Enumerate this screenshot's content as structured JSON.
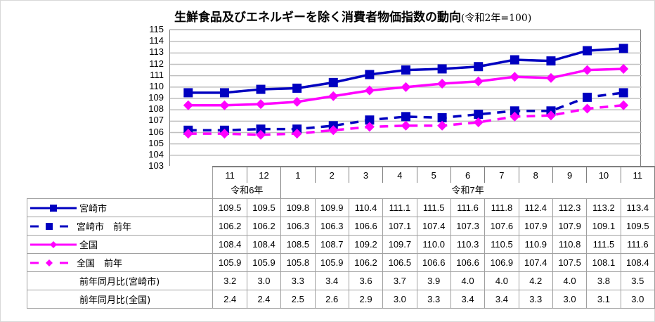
{
  "title": {
    "main": "生鮮食品及びエネルギーを除く消費者物価指数の動向",
    "sub": "(令和2年=100)"
  },
  "colors": {
    "miyazaki": "#0000c0",
    "national": "#ff00ff",
    "grid": "#c0c0c0",
    "border": "#808080"
  },
  "axis": {
    "y_ticks": [
      "115",
      "114",
      "113",
      "112",
      "111",
      "110",
      "109",
      "108",
      "107",
      "106",
      "105",
      "104",
      "103"
    ]
  },
  "table": {
    "months": [
      "11",
      "12",
      "1",
      "2",
      "3",
      "4",
      "5",
      "6",
      "7",
      "8",
      "9",
      "10",
      "11"
    ],
    "years": [
      {
        "label": "令和6年",
        "span": 2
      },
      {
        "label": "令和7年",
        "span": 11
      }
    ],
    "rows": [
      {
        "label": "宮崎市",
        "legend": "miyazaki-solid",
        "values": [
          "109.5",
          "109.5",
          "109.8",
          "109.9",
          "110.4",
          "111.1",
          "111.5",
          "111.6",
          "111.8",
          "112.4",
          "112.3",
          "113.2",
          "113.4"
        ]
      },
      {
        "label": "宮崎市　前年",
        "legend": "miyazaki-dashed",
        "values": [
          "106.2",
          "106.2",
          "106.3",
          "106.3",
          "106.6",
          "107.1",
          "107.4",
          "107.3",
          "107.6",
          "107.9",
          "107.9",
          "109.1",
          "109.5"
        ]
      },
      {
        "label": "全国",
        "legend": "national-solid",
        "values": [
          "108.4",
          "108.4",
          "108.5",
          "108.7",
          "109.2",
          "109.7",
          "110.0",
          "110.3",
          "110.5",
          "110.9",
          "110.8",
          "111.5",
          "111.6"
        ]
      },
      {
        "label": "全国　前年",
        "legend": "national-dashed",
        "values": [
          "105.9",
          "105.9",
          "105.8",
          "105.9",
          "106.2",
          "106.5",
          "106.6",
          "106.6",
          "106.9",
          "107.4",
          "107.5",
          "108.1",
          "108.4"
        ]
      },
      {
        "label": "前年同月比(宮崎市)",
        "legend": "none",
        "values": [
          "3.2",
          "3.0",
          "3.3",
          "3.4",
          "3.6",
          "3.7",
          "3.9",
          "4.0",
          "4.0",
          "4.2",
          "4.0",
          "3.8",
          "3.5"
        ]
      },
      {
        "label": "前年同月比(全国)",
        "legend": "none",
        "values": [
          "2.4",
          "2.4",
          "2.5",
          "2.6",
          "2.9",
          "3.0",
          "3.3",
          "3.4",
          "3.4",
          "3.3",
          "3.0",
          "3.1",
          "3.0"
        ]
      }
    ]
  },
  "chart_data": {
    "type": "line",
    "title": "生鮮食品及びエネルギーを除く消費者物価指数の動向(令和2年=100)",
    "xlabel": "",
    "ylabel": "",
    "ylim": [
      103,
      115
    ],
    "grid": true,
    "legend_position": "table-left",
    "categories": [
      "令和6年11",
      "12",
      "令和7年1",
      "2",
      "3",
      "4",
      "5",
      "6",
      "7",
      "8",
      "9",
      "10",
      "11"
    ],
    "series": [
      {
        "name": "宮崎市",
        "style": "solid",
        "marker": "square",
        "color": "#0000c0",
        "values": [
          109.5,
          109.5,
          109.8,
          109.9,
          110.4,
          111.1,
          111.5,
          111.6,
          111.8,
          112.4,
          112.3,
          113.2,
          113.4
        ]
      },
      {
        "name": "宮崎市　前年",
        "style": "dashed",
        "marker": "square",
        "color": "#0000c0",
        "values": [
          106.2,
          106.2,
          106.3,
          106.3,
          106.6,
          107.1,
          107.4,
          107.3,
          107.6,
          107.9,
          107.9,
          109.1,
          109.5
        ]
      },
      {
        "name": "全国",
        "style": "solid",
        "marker": "diamond",
        "color": "#ff00ff",
        "values": [
          108.4,
          108.4,
          108.5,
          108.7,
          109.2,
          109.7,
          110.0,
          110.3,
          110.5,
          110.9,
          110.8,
          111.5,
          111.6
        ]
      },
      {
        "name": "全国　前年",
        "style": "dashed",
        "marker": "diamond",
        "color": "#ff00ff",
        "values": [
          105.9,
          105.9,
          105.8,
          105.9,
          106.2,
          106.5,
          106.6,
          106.6,
          106.9,
          107.4,
          107.5,
          108.1,
          108.4
        ]
      }
    ],
    "extra_rows": [
      {
        "name": "前年同月比(宮崎市)",
        "values": [
          3.2,
          3.0,
          3.3,
          3.4,
          3.6,
          3.7,
          3.9,
          4.0,
          4.0,
          4.2,
          4.0,
          3.8,
          3.5
        ]
      },
      {
        "name": "前年同月比(全国)",
        "values": [
          2.4,
          2.4,
          2.5,
          2.6,
          2.9,
          3.0,
          3.3,
          3.4,
          3.4,
          3.3,
          3.0,
          3.1,
          3.0
        ]
      }
    ]
  }
}
